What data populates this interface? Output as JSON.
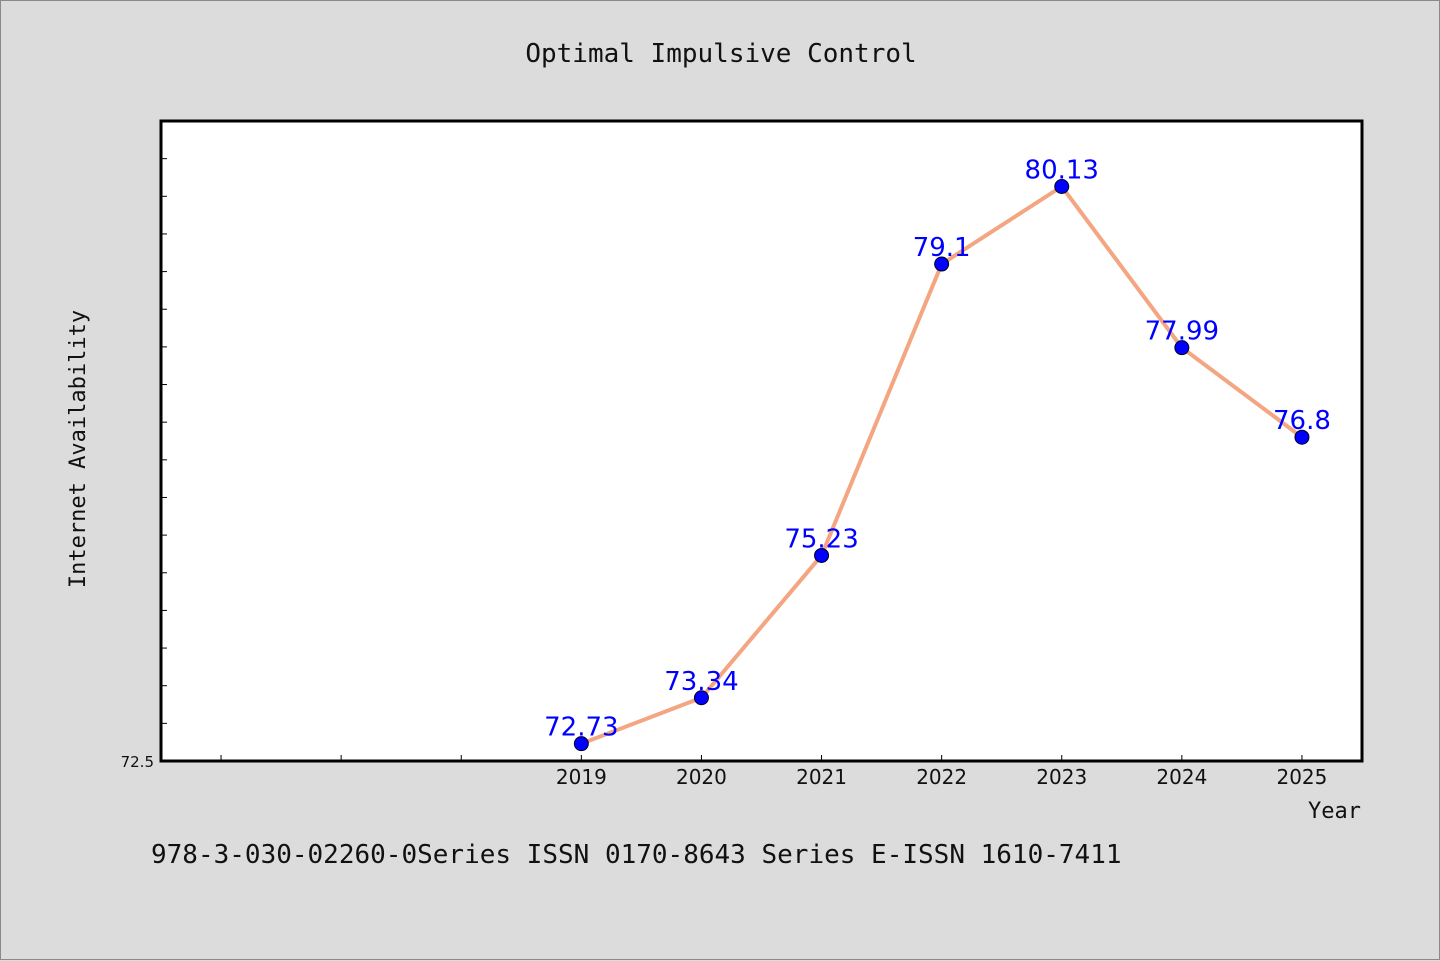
{
  "chart_data": {
    "type": "line",
    "title": "Optimal Impulsive Control",
    "xlabel": "Year",
    "ylabel": "Internet Availability",
    "categories": [
      "2019",
      "2020",
      "2021",
      "2022",
      "2023",
      "2024",
      "2025"
    ],
    "series": [
      {
        "values": [
          72.73,
          73.34,
          75.23,
          79.1,
          80.13,
          77.99,
          76.8
        ]
      }
    ],
    "data_labels": [
      "72.73",
      "73.34",
      "75.23",
      "79.1",
      "80.13",
      "77.99",
      "76.8"
    ],
    "ytick_labels": [
      "72.5"
    ],
    "ylim": [
      72.5,
      81.0
    ],
    "x_range_categories": 10,
    "grid": false,
    "line_color": "#f4a582",
    "marker_color": "#0000ff",
    "label_color": "#0000ff",
    "plot_background": "#ffffff",
    "figure_background": "#dcdcdc"
  },
  "footnote": "978-3-030-02260-0Series ISSN 0170-8643 Series E-ISSN 1610-7411"
}
